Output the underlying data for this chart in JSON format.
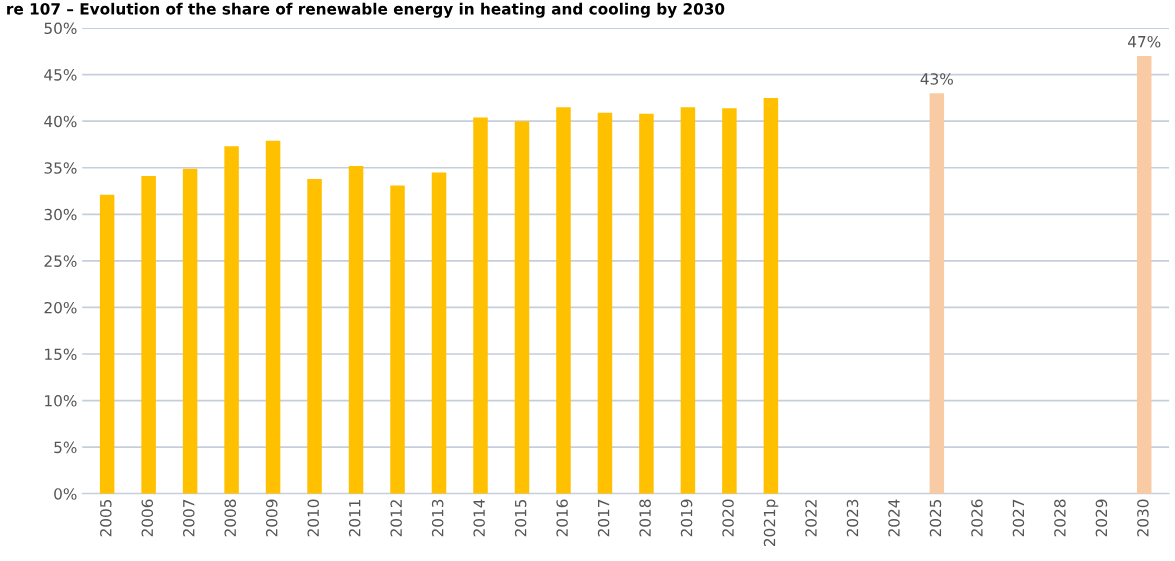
{
  "chart_data": {
    "type": "bar",
    "title": "re 107 – Evolution of the share of renewable energy in heating and cooling by 2030",
    "categories": [
      "2005",
      "2006",
      "2007",
      "2008",
      "2009",
      "2010",
      "2011",
      "2012",
      "2013",
      "2014",
      "2015",
      "2016",
      "2017",
      "2018",
      "2019",
      "2020",
      "2021p",
      "2022",
      "2023",
      "2024",
      "2025",
      "2026",
      "2027",
      "2028",
      "2029",
      "2030"
    ],
    "values": [
      32.1,
      34.1,
      34.9,
      37.3,
      37.9,
      33.8,
      35.2,
      33.1,
      34.5,
      40.4,
      40.0,
      41.5,
      40.9,
      40.8,
      41.5,
      41.4,
      42.5,
      null,
      null,
      null,
      43,
      null,
      null,
      null,
      null,
      47
    ],
    "colors": [
      "#ffc000",
      "#ffc000",
      "#ffc000",
      "#ffc000",
      "#ffc000",
      "#ffc000",
      "#ffc000",
      "#ffc000",
      "#ffc000",
      "#ffc000",
      "#ffc000",
      "#ffc000",
      "#ffc000",
      "#ffc000",
      "#ffc000",
      "#ffc000",
      "#ffc000",
      "#ffc000",
      "#ffc000",
      "#ffc000",
      "#f8cba4",
      "#ffc000",
      "#ffc000",
      "#ffc000",
      "#ffc000",
      "#f8cba4"
    ],
    "value_labels": [
      null,
      null,
      null,
      null,
      null,
      null,
      null,
      null,
      null,
      null,
      null,
      null,
      null,
      null,
      null,
      null,
      null,
      null,
      null,
      null,
      "43%",
      null,
      null,
      null,
      null,
      "47%"
    ],
    "ylim": [
      0,
      50
    ],
    "yticks": [
      {
        "value": 0,
        "label": "0%"
      },
      {
        "value": 5,
        "label": "5%"
      },
      {
        "value": 10,
        "label": "10%"
      },
      {
        "value": 15,
        "label": "15%"
      },
      {
        "value": 20,
        "label": "20%"
      },
      {
        "value": 25,
        "label": "25%"
      },
      {
        "value": 30,
        "label": "30%"
      },
      {
        "value": 35,
        "label": "35%"
      },
      {
        "value": 40,
        "label": "40%"
      },
      {
        "value": 45,
        "label": "45%"
      },
      {
        "value": 50,
        "label": "50%"
      }
    ],
    "grid": "y",
    "legend": false
  }
}
